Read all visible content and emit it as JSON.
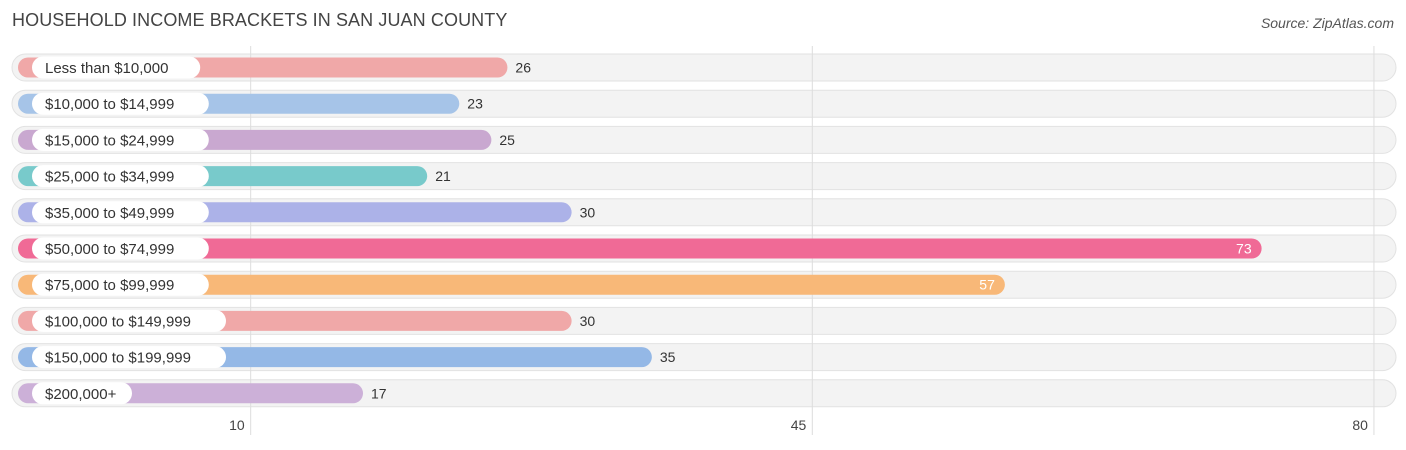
{
  "title": "HOUSEHOLD INCOME BRACKETS IN SAN JUAN COUNTY",
  "source": "Source: ZipAtlas.com",
  "chart_data": {
    "type": "bar",
    "orientation": "horizontal",
    "title": "HOUSEHOLD INCOME BRACKETS IN SAN JUAN COUNTY",
    "categories": [
      "Less than $10,000",
      "$10,000 to $14,999",
      "$15,000 to $24,999",
      "$25,000 to $34,999",
      "$35,000 to $49,999",
      "$50,000 to $74,999",
      "$75,000 to $99,999",
      "$100,000 to $149,999",
      "$150,000 to $199,999",
      "$200,000+"
    ],
    "values": [
      26,
      23,
      25,
      21,
      30,
      73,
      57,
      30,
      35,
      17
    ],
    "value_labels": [
      "26",
      "23",
      "25",
      "21",
      "30",
      "73",
      "57",
      "30",
      "35",
      "17"
    ],
    "colors": [
      "#F0A8A8",
      "#A6C4E8",
      "#C9A8D0",
      "#78CACB",
      "#ACB2E8",
      "#F06A96",
      "#F8B878",
      "#F0A8A8",
      "#94B8E6",
      "#CCB0D8"
    ],
    "x_ticks": [
      10,
      45,
      80
    ],
    "x_tick_labels": [
      "10",
      "45",
      "80"
    ],
    "xlim": [
      -4.5,
      81
    ],
    "xlabel": "",
    "ylabel": "",
    "grid": true,
    "legend": "none"
  }
}
